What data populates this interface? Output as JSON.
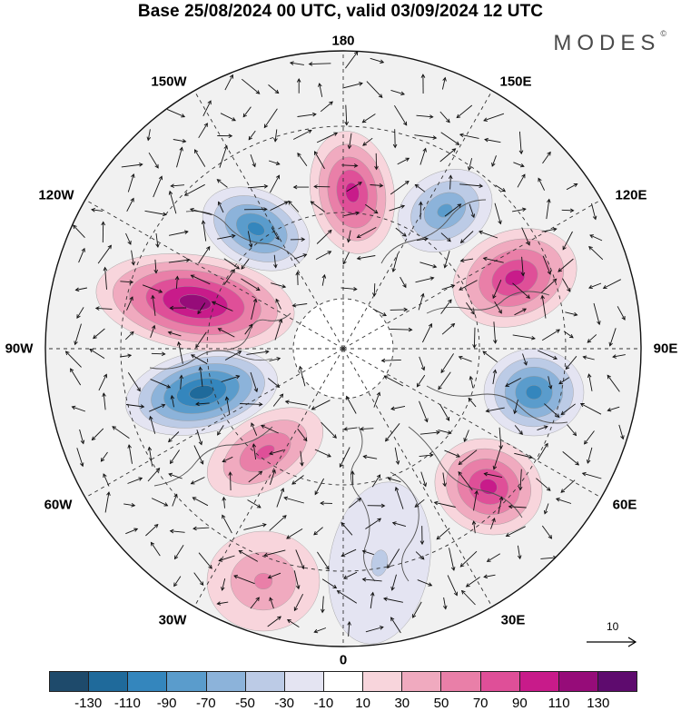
{
  "title": "Base 25/08/2024 00 UTC, valid 03/09/2024 12 UTC",
  "brand": {
    "name": "MODES",
    "mark": "©"
  },
  "longitude_labels": {
    "lon_180": "180",
    "lon_150e": "150E",
    "lon_120e": "120E",
    "lon_90e": "90E",
    "lon_60e": "60E",
    "lon_30e": "30E",
    "lon_0": "0",
    "lon_30w": "30W",
    "lon_60w": "60W",
    "lon_90w": "90W",
    "lon_120w": "120W",
    "lon_150w": "150W"
  },
  "reference_vector": {
    "label": "10"
  },
  "colorbar": {
    "colors": [
      "#1e4a6b",
      "#1f6a9b",
      "#3486bd",
      "#5a9ccc",
      "#8cb3da",
      "#bccbe6",
      "#e4e4f2",
      "#ffffff",
      "#f8d5dc",
      "#f0aabf",
      "#e97fa8",
      "#df4f98",
      "#c81b8a",
      "#960c79",
      "#5e0b6e"
    ],
    "tick_labels": [
      "-130",
      "-110",
      "-90",
      "-70",
      "-50",
      "-30",
      "-10",
      "10",
      "30",
      "50",
      "70",
      "90",
      "110",
      "130"
    ]
  },
  "anomalies": [
    {
      "id": "pos-180",
      "sign": "positive",
      "magnitude": 100
    },
    {
      "id": "neg-150e",
      "sign": "negative",
      "magnitude": 80
    },
    {
      "id": "pos-120e",
      "sign": "positive",
      "magnitude": 90
    },
    {
      "id": "neg-90e",
      "sign": "negative",
      "magnitude": 100
    },
    {
      "id": "pos-60e",
      "sign": "positive",
      "magnitude": 90
    },
    {
      "id": "neg-15e",
      "sign": "negative",
      "magnitude": 40
    },
    {
      "id": "pos-30w",
      "sign": "positive",
      "magnitude": 50
    },
    {
      "id": "pos-60w",
      "sign": "positive",
      "magnitude": 70
    },
    {
      "id": "neg-90w",
      "sign": "negative",
      "magnitude": 110
    },
    {
      "id": "pos-105w",
      "sign": "positive",
      "magnitude": 120
    },
    {
      "id": "neg-140w",
      "sign": "negative",
      "magnitude": 100
    }
  ]
}
